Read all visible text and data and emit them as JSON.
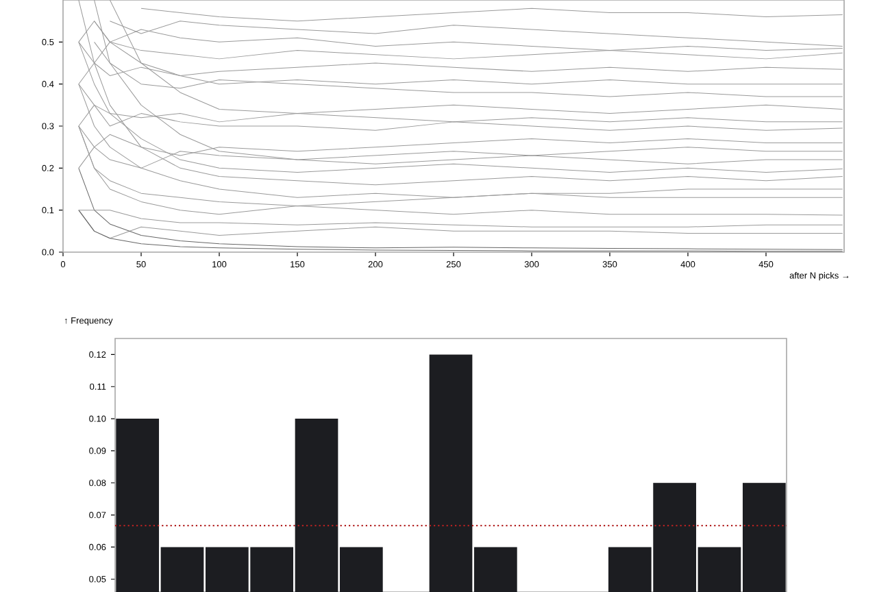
{
  "chart_data": [
    {
      "type": "line",
      "xlabel": "after N picks →",
      "xlim": [
        0,
        500
      ],
      "ylim": [
        0,
        0.6
      ],
      "xticks": [
        0,
        50,
        100,
        150,
        200,
        250,
        300,
        350,
        400,
        450
      ],
      "yticks": [
        {
          "value": 0,
          "label": "0.0"
        },
        {
          "value": 0.1,
          "label": "0.1"
        },
        {
          "value": 0.2,
          "label": "0.2"
        },
        {
          "value": 0.3,
          "label": "0.3"
        },
        {
          "value": 0.4,
          "label": "0.4"
        },
        {
          "value": 0.5,
          "label": "0.5"
        }
      ],
      "x": [
        10,
        20,
        30,
        50,
        75,
        100,
        150,
        200,
        250,
        300,
        350,
        400,
        450,
        499
      ],
      "marker": "none",
      "line_style": "solid",
      "series": [
        {
          "color": "#999999",
          "values": [
            null,
            null,
            null,
            0.58,
            0.57,
            0.56,
            0.55,
            0.56,
            0.57,
            0.58,
            0.57,
            0.57,
            0.56,
            0.565
          ]
        },
        {
          "color": "#999999",
          "values": [
            null,
            null,
            0.55,
            0.52,
            0.55,
            0.54,
            0.53,
            0.52,
            0.54,
            0.53,
            0.52,
            0.51,
            0.5,
            0.49
          ]
        },
        {
          "color": "#999999",
          "values": [
            null,
            0.55,
            0.5,
            0.53,
            0.51,
            0.5,
            0.51,
            0.49,
            0.5,
            0.49,
            0.48,
            0.49,
            0.48,
            0.485
          ]
        },
        {
          "color": "#999999",
          "values": [
            0.5,
            0.45,
            0.5,
            0.48,
            0.47,
            0.46,
            0.48,
            0.47,
            0.46,
            0.47,
            0.48,
            0.47,
            0.46,
            0.474
          ]
        },
        {
          "color": "#999999",
          "values": [
            0.4,
            0.45,
            0.42,
            0.44,
            0.42,
            0.43,
            0.44,
            0.45,
            0.44,
            0.43,
            0.44,
            0.43,
            0.44,
            0.435
          ]
        },
        {
          "color": "#999999",
          "values": [
            null,
            0.5,
            0.45,
            0.4,
            0.39,
            0.41,
            0.4,
            0.39,
            0.38,
            0.38,
            0.37,
            0.38,
            0.37,
            0.37
          ]
        },
        {
          "color": "#999999",
          "values": [
            0.3,
            0.35,
            0.33,
            0.32,
            0.33,
            0.31,
            0.33,
            0.32,
            0.31,
            0.32,
            0.31,
            0.32,
            0.31,
            0.31
          ]
        },
        {
          "color": "#999999",
          "values": [
            0.4,
            0.35,
            0.3,
            0.33,
            0.31,
            0.3,
            0.3,
            0.29,
            0.31,
            0.3,
            0.29,
            0.3,
            0.29,
            0.295
          ]
        },
        {
          "color": "#999999",
          "values": [
            0.2,
            0.25,
            0.28,
            0.25,
            0.23,
            0.25,
            0.24,
            0.25,
            0.26,
            0.27,
            0.26,
            0.27,
            0.26,
            0.26
          ]
        },
        {
          "color": "#999999",
          "values": [
            0.3,
            0.25,
            0.22,
            0.2,
            0.24,
            0.23,
            0.22,
            0.23,
            0.24,
            0.23,
            0.24,
            0.25,
            0.24,
            0.24
          ]
        },
        {
          "color": "#999999",
          "values": [
            0.5,
            0.4,
            0.33,
            0.27,
            0.22,
            0.2,
            0.19,
            0.2,
            0.21,
            0.2,
            0.19,
            0.2,
            0.19,
            0.198
          ]
        },
        {
          "color": "#999999",
          "values": [
            0.6,
            0.45,
            0.35,
            0.25,
            0.2,
            0.18,
            0.17,
            0.16,
            0.17,
            0.18,
            0.17,
            0.18,
            0.17,
            0.18
          ]
        },
        {
          "color": "#999999",
          "values": [
            0.4,
            0.3,
            0.25,
            0.2,
            0.17,
            0.15,
            0.13,
            0.14,
            0.13,
            0.14,
            0.13,
            0.13,
            0.13,
            0.13
          ]
        },
        {
          "color": "#999999",
          "values": [
            0.3,
            0.2,
            0.15,
            0.12,
            0.1,
            0.09,
            0.11,
            0.1,
            0.09,
            0.1,
            0.09,
            0.09,
            0.09,
            0.088
          ]
        },
        {
          "color": "#999999",
          "values": [
            0.1,
            0.05,
            0.033,
            0.06,
            0.05,
            0.04,
            0.05,
            0.06,
            0.05,
            0.05,
            0.05,
            0.045,
            0.045,
            0.045
          ]
        },
        {
          "color": "#666666",
          "values": [
            0.1,
            0.05,
            0.033,
            0.02,
            0.013,
            0.01,
            0.007,
            0.005,
            0.004,
            0.003,
            0.003,
            0.003,
            0.002,
            0.002
          ]
        },
        {
          "color": "#666666",
          "values": [
            0.2,
            0.1,
            0.067,
            0.04,
            0.027,
            0.02,
            0.013,
            0.01,
            0.012,
            0.01,
            0.009,
            0.008,
            0.007,
            0.006
          ]
        },
        {
          "color": "#999999",
          "values": [
            null,
            0.6,
            0.45,
            0.35,
            0.28,
            0.24,
            0.22,
            0.21,
            0.22,
            0.23,
            0.22,
            0.21,
            0.22,
            0.22
          ]
        },
        {
          "color": "#999999",
          "values": [
            null,
            null,
            0.6,
            0.45,
            0.38,
            0.34,
            0.33,
            0.34,
            0.35,
            0.34,
            0.33,
            0.34,
            0.35,
            0.34
          ]
        },
        {
          "color": "#999999",
          "values": [
            0.5,
            0.55,
            0.5,
            0.45,
            0.42,
            0.4,
            0.41,
            0.4,
            0.41,
            0.4,
            0.41,
            0.4,
            0.4,
            0.4
          ]
        },
        {
          "color": "#999999",
          "values": [
            0.3,
            0.2,
            0.17,
            0.14,
            0.13,
            0.12,
            0.11,
            0.12,
            0.13,
            0.14,
            0.14,
            0.15,
            0.15,
            0.15
          ]
        },
        {
          "color": "#999999",
          "values": [
            0.1,
            0.1,
            0.1,
            0.08,
            0.07,
            0.07,
            0.065,
            0.07,
            0.065,
            0.06,
            0.06,
            0.06,
            0.065,
            0.065
          ]
        }
      ]
    },
    {
      "type": "bar",
      "ylabel": "↑ Frequency",
      "ylim": [
        0.046,
        0.125
      ],
      "yticks": [
        0.05,
        0.06,
        0.07,
        0.08,
        0.09,
        {
          "value": 0.1,
          "label": "0.10"
        },
        0.11,
        0.12
      ],
      "categories": [
        null,
        null,
        null,
        null,
        null,
        null,
        null,
        null,
        null,
        null,
        null,
        null,
        null,
        null,
        null
      ],
      "values": [
        0.1,
        0.06,
        0.06,
        0.06,
        0.1,
        0.06,
        null,
        0.12,
        0.06,
        null,
        null,
        0.06,
        0.08,
        0.06,
        0.08
      ],
      "color": "#1c1d21",
      "tick_labels": "y",
      "ref_lines": [
        {
          "axis": "y",
          "value": 0.0667,
          "color": "#b22222",
          "line_style": "dotted"
        }
      ]
    }
  ]
}
